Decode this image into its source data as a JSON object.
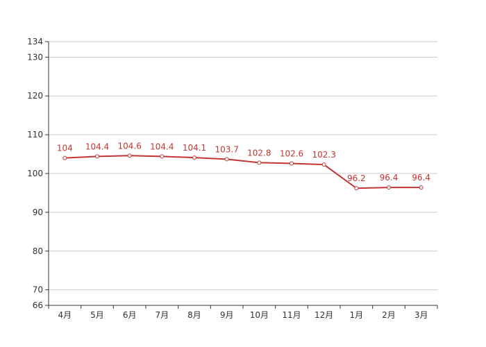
{
  "chart_data": {
    "type": "line",
    "title": "",
    "xlabel": "",
    "ylabel": "",
    "categories": [
      "4月",
      "5月",
      "6月",
      "7月",
      "8月",
      "9月",
      "10月",
      "11月",
      "12月",
      "1月",
      "2月",
      "3月"
    ],
    "series": [
      {
        "values": [
          104,
          104.4,
          104.6,
          104.4,
          104.1,
          103.7,
          102.8,
          102.6,
          102.3,
          96.2,
          96.4,
          96.4
        ],
        "color": "#c23531"
      }
    ],
    "data_labels": [
      "104",
      "104.4",
      "104.6",
      "104.4",
      "104.1",
      "103.7",
      "102.8",
      "102.6",
      "102.3",
      "96.2",
      "96.4",
      "96.4"
    ],
    "ylim": [
      66,
      134
    ],
    "yticks": [
      66,
      70,
      80,
      90,
      100,
      110,
      120,
      130,
      134
    ],
    "ytick_labels": [
      "66",
      "70",
      "80",
      "90",
      "100",
      "110",
      "120",
      "130",
      "134"
    ],
    "grid": true,
    "legend": "none"
  }
}
